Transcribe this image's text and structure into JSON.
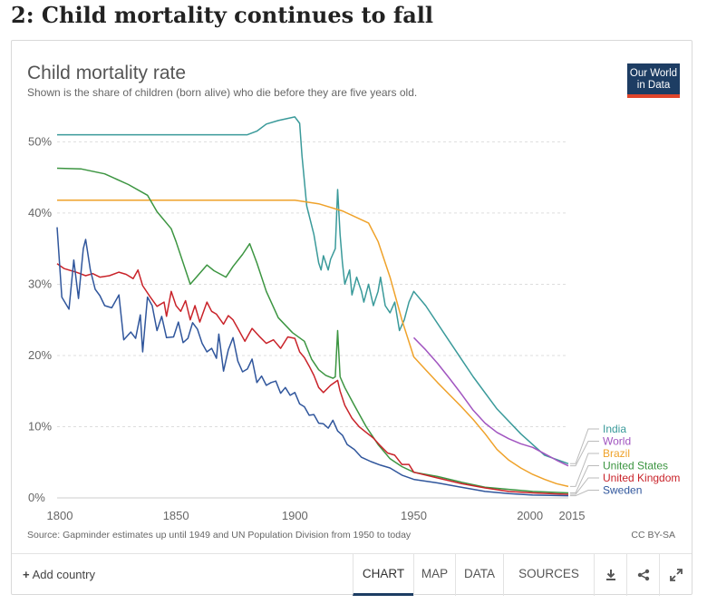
{
  "page": {
    "heading": "2: Child mortality continues to fall"
  },
  "chart_header": {
    "title": "Child mortality rate",
    "subtitle": "Shown is the share of children (born alive) who die before they are five years old.",
    "logo_line1": "Our World",
    "logo_line2": "in Data"
  },
  "footer": {
    "source": "Source: Gapminder estimates up until 1949 and UN Population Division from 1950 to today",
    "license": "CC BY-SA"
  },
  "controls": {
    "add_country": "Add country",
    "tabs": [
      "CHART",
      "MAP",
      "DATA",
      "SOURCES"
    ],
    "active_tab": "CHART"
  },
  "colors": {
    "India": "#3a9a9a",
    "World": "#a155c0",
    "Brazil": "#efa22a",
    "United States": "#3c9541",
    "United Kingdom": "#c9232a",
    "Sweden": "#30569c",
    "brand": "#1d3d63",
    "brand_accent": "#e0452b"
  },
  "icons": {
    "download": "download-icon",
    "share": "share-icon",
    "expand": "expand-icon"
  },
  "chart_data": {
    "type": "line",
    "title": "Child mortality rate",
    "subtitle": "Shown is the share of children (born alive) who die before they are five years old.",
    "xlabel": "",
    "ylabel": "",
    "xlim": [
      1800,
      2015
    ],
    "ylim": [
      0,
      54
    ],
    "x_ticks": [
      1800,
      1850,
      1900,
      1950,
      2000,
      2015
    ],
    "y_ticks": [
      0,
      10,
      20,
      30,
      40,
      50
    ],
    "y_tick_labels": [
      "0%",
      "10%",
      "20%",
      "30%",
      "40%",
      "50%"
    ],
    "grid": "horizontal dashed",
    "legend": "right, labels at line ends",
    "series": [
      {
        "name": "India",
        "points": [
          [
            1800,
            51
          ],
          [
            1880,
            51
          ],
          [
            1884,
            51.5
          ],
          [
            1888,
            52.5
          ],
          [
            1893,
            53
          ],
          [
            1900,
            53.5
          ],
          [
            1902,
            52.6
          ],
          [
            1903,
            48
          ],
          [
            1905,
            41
          ],
          [
            1908,
            37
          ],
          [
            1910,
            33
          ],
          [
            1911,
            32
          ],
          [
            1912,
            34
          ],
          [
            1914,
            32
          ],
          [
            1915,
            33.5
          ],
          [
            1917,
            35
          ],
          [
            1918,
            43.3
          ],
          [
            1919,
            37
          ],
          [
            1920,
            33
          ],
          [
            1921,
            30
          ],
          [
            1923,
            32
          ],
          [
            1924,
            28.5
          ],
          [
            1926,
            31
          ],
          [
            1928,
            29
          ],
          [
            1929,
            27.5
          ],
          [
            1931,
            30
          ],
          [
            1933,
            27
          ],
          [
            1935,
            29
          ],
          [
            1936,
            31
          ],
          [
            1938,
            27
          ],
          [
            1940,
            26
          ],
          [
            1942,
            27.5
          ],
          [
            1944,
            23.5
          ],
          [
            1946,
            25
          ],
          [
            1948,
            27.5
          ],
          [
            1950,
            29
          ],
          [
            1955,
            27
          ],
          [
            1965,
            22
          ],
          [
            1975,
            17
          ],
          [
            1985,
            12.5
          ],
          [
            1995,
            9
          ],
          [
            2005,
            6
          ],
          [
            2015,
            4.8
          ]
        ]
      },
      {
        "name": "World",
        "points": [
          [
            1950,
            22.5
          ],
          [
            1955,
            20.8
          ],
          [
            1960,
            18.9
          ],
          [
            1965,
            16.8
          ],
          [
            1970,
            14.6
          ],
          [
            1975,
            12.3
          ],
          [
            1980,
            10.5
          ],
          [
            1985,
            9.2
          ],
          [
            1990,
            8.3
          ],
          [
            1995,
            7.6
          ],
          [
            2000,
            7.1
          ],
          [
            2005,
            6.2
          ],
          [
            2010,
            5.3
          ],
          [
            2015,
            4.5
          ]
        ]
      },
      {
        "name": "Brazil",
        "points": [
          [
            1800,
            41.8
          ],
          [
            1900,
            41.8
          ],
          [
            1910,
            41.3
          ],
          [
            1920,
            40.3
          ],
          [
            1931,
            38.6
          ],
          [
            1935,
            36
          ],
          [
            1940,
            31
          ],
          [
            1945,
            25
          ],
          [
            1950,
            19.8
          ],
          [
            1955,
            18
          ],
          [
            1960,
            16.2
          ],
          [
            1965,
            14.5
          ],
          [
            1970,
            12.8
          ],
          [
            1975,
            11
          ],
          [
            1980,
            9
          ],
          [
            1985,
            6.8
          ],
          [
            1990,
            5.3
          ],
          [
            1995,
            4.2
          ],
          [
            2000,
            3.3
          ],
          [
            2005,
            2.6
          ],
          [
            2010,
            2
          ],
          [
            2015,
            1.6
          ]
        ]
      },
      {
        "name": "United States",
        "points": [
          [
            1800,
            46.3
          ],
          [
            1810,
            46.2
          ],
          [
            1820,
            45.5
          ],
          [
            1830,
            44
          ],
          [
            1838,
            42.5
          ],
          [
            1842,
            40.2
          ],
          [
            1848,
            37.8
          ],
          [
            1850,
            36
          ],
          [
            1856,
            30
          ],
          [
            1863,
            32.7
          ],
          [
            1866,
            31.9
          ],
          [
            1871,
            31
          ],
          [
            1874,
            32.5
          ],
          [
            1878,
            34.2
          ],
          [
            1881,
            35.7
          ],
          [
            1884,
            33
          ],
          [
            1888,
            29
          ],
          [
            1893,
            25.3
          ],
          [
            1899,
            23.2
          ],
          [
            1904,
            22
          ],
          [
            1907,
            19.5
          ],
          [
            1910,
            18
          ],
          [
            1913,
            17.2
          ],
          [
            1916,
            16.8
          ],
          [
            1917,
            17
          ],
          [
            1918,
            23.5
          ],
          [
            1919,
            17
          ],
          [
            1921,
            15.5
          ],
          [
            1925,
            13
          ],
          [
            1930,
            10
          ],
          [
            1935,
            7.5
          ],
          [
            1940,
            5.5
          ],
          [
            1945,
            4.4
          ],
          [
            1950,
            3.6
          ],
          [
            1960,
            3
          ],
          [
            1970,
            2.2
          ],
          [
            1980,
            1.5
          ],
          [
            1990,
            1.2
          ],
          [
            2000,
            0.9
          ],
          [
            2015,
            0.7
          ]
        ]
      },
      {
        "name": "United Kingdom",
        "points": [
          [
            1800,
            32.9
          ],
          [
            1803,
            32.2
          ],
          [
            1808,
            31.7
          ],
          [
            1812,
            31.2
          ],
          [
            1815,
            31.5
          ],
          [
            1818,
            31
          ],
          [
            1822,
            31.2
          ],
          [
            1826,
            31.7
          ],
          [
            1829,
            31.4
          ],
          [
            1832,
            30.8
          ],
          [
            1834,
            32
          ],
          [
            1836,
            29.8
          ],
          [
            1839,
            28.3
          ],
          [
            1842,
            26.9
          ],
          [
            1845,
            27.5
          ],
          [
            1846,
            25.5
          ],
          [
            1848,
            29
          ],
          [
            1850,
            27
          ],
          [
            1852,
            26.2
          ],
          [
            1854,
            27.7
          ],
          [
            1856,
            25
          ],
          [
            1858,
            27
          ],
          [
            1860,
            24.7
          ],
          [
            1863,
            27.5
          ],
          [
            1865,
            26.2
          ],
          [
            1867,
            25.8
          ],
          [
            1870,
            24.4
          ],
          [
            1872,
            25.6
          ],
          [
            1874,
            25
          ],
          [
            1876,
            23.8
          ],
          [
            1879,
            22
          ],
          [
            1882,
            23.8
          ],
          [
            1885,
            22.7
          ],
          [
            1888,
            21.7
          ],
          [
            1891,
            22.2
          ],
          [
            1894,
            21
          ],
          [
            1897,
            22.6
          ],
          [
            1900,
            22.4
          ],
          [
            1902,
            20.5
          ],
          [
            1904,
            19.7
          ],
          [
            1906,
            18.5
          ],
          [
            1908,
            17.2
          ],
          [
            1910,
            15.5
          ],
          [
            1912,
            14.8
          ],
          [
            1915,
            15.8
          ],
          [
            1918,
            16.5
          ],
          [
            1919,
            15
          ],
          [
            1921,
            13
          ],
          [
            1924,
            11.2
          ],
          [
            1927,
            10
          ],
          [
            1930,
            9.2
          ],
          [
            1933,
            8.4
          ],
          [
            1936,
            7.3
          ],
          [
            1939,
            6.3
          ],
          [
            1942,
            6
          ],
          [
            1945,
            4.7
          ],
          [
            1948,
            4.7
          ],
          [
            1950,
            3.6
          ],
          [
            1960,
            2.8
          ],
          [
            1970,
            2
          ],
          [
            1980,
            1.4
          ],
          [
            1990,
            0.9
          ],
          [
            2000,
            0.7
          ],
          [
            2015,
            0.5
          ]
        ]
      },
      {
        "name": "Sweden",
        "points": [
          [
            1800,
            38
          ],
          [
            1802,
            28.2
          ],
          [
            1805,
            26.5
          ],
          [
            1807,
            33.4
          ],
          [
            1809,
            28
          ],
          [
            1811,
            35
          ],
          [
            1812,
            36.3
          ],
          [
            1814,
            32
          ],
          [
            1816,
            29.3
          ],
          [
            1818,
            28.4
          ],
          [
            1820,
            27
          ],
          [
            1823,
            26.7
          ],
          [
            1826,
            28.5
          ],
          [
            1828,
            22.2
          ],
          [
            1831,
            23.3
          ],
          [
            1833,
            22.4
          ],
          [
            1835,
            25.7
          ],
          [
            1836,
            20.5
          ],
          [
            1838,
            28.2
          ],
          [
            1840,
            27
          ],
          [
            1842,
            23.5
          ],
          [
            1844,
            25.5
          ],
          [
            1846,
            22.5
          ],
          [
            1849,
            22.6
          ],
          [
            1851,
            24.7
          ],
          [
            1853,
            21.8
          ],
          [
            1855,
            22.4
          ],
          [
            1857,
            24.6
          ],
          [
            1859,
            23.7
          ],
          [
            1861,
            21.7
          ],
          [
            1863,
            20.5
          ],
          [
            1865,
            21
          ],
          [
            1867,
            19.6
          ],
          [
            1868,
            23
          ],
          [
            1870,
            17.8
          ],
          [
            1872,
            20.8
          ],
          [
            1874,
            22.5
          ],
          [
            1876,
            19.2
          ],
          [
            1878,
            17.7
          ],
          [
            1880,
            18.1
          ],
          [
            1882,
            19.5
          ],
          [
            1884,
            16.2
          ],
          [
            1886,
            17.1
          ],
          [
            1888,
            15.8
          ],
          [
            1890,
            16.2
          ],
          [
            1892,
            16.4
          ],
          [
            1894,
            14.7
          ],
          [
            1896,
            15.5
          ],
          [
            1898,
            14.4
          ],
          [
            1900,
            14.8
          ],
          [
            1902,
            13.2
          ],
          [
            1904,
            12.8
          ],
          [
            1906,
            11.6
          ],
          [
            1908,
            11.7
          ],
          [
            1910,
            10.5
          ],
          [
            1912,
            10.4
          ],
          [
            1914,
            9.8
          ],
          [
            1916,
            10.9
          ],
          [
            1918,
            9.4
          ],
          [
            1920,
            8.8
          ],
          [
            1922,
            7.5
          ],
          [
            1925,
            6.8
          ],
          [
            1928,
            5.7
          ],
          [
            1932,
            5.1
          ],
          [
            1936,
            4.6
          ],
          [
            1940,
            4.2
          ],
          [
            1945,
            3.2
          ],
          [
            1950,
            2.6
          ],
          [
            1960,
            2.1
          ],
          [
            1970,
            1.5
          ],
          [
            1980,
            0.9
          ],
          [
            1990,
            0.6
          ],
          [
            2000,
            0.4
          ],
          [
            2015,
            0.3
          ]
        ]
      }
    ],
    "end_labels": [
      "India",
      "World",
      "Brazil",
      "United States",
      "United Kingdom",
      "Sweden"
    ]
  }
}
